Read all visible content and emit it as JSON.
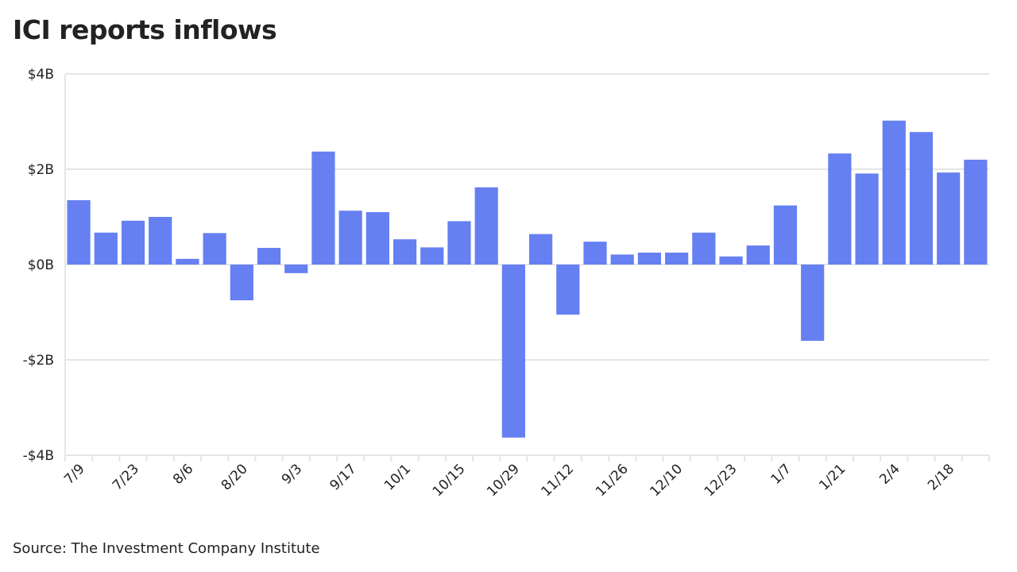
{
  "title": "ICI reports inflows",
  "source": "Source: The Investment Company Institute",
  "colors": {
    "bar": "#6680f2",
    "grid": "#e6e6e6",
    "text": "#222222"
  },
  "chart_data": {
    "type": "bar",
    "title": "ICI reports inflows",
    "xlabel": "",
    "ylabel": "",
    "unit": "$ billions",
    "ylim": [
      -4,
      4
    ],
    "y_ticks": [
      4,
      2,
      0,
      -2,
      -4
    ],
    "y_tick_labels": [
      "$4B",
      "$2B",
      "$0B",
      "-$2B",
      "-$4B"
    ],
    "x_tick_labels": [
      "7/9",
      "7/23",
      "8/6",
      "8/20",
      "9/3",
      "9/17",
      "10/1",
      "10/15",
      "10/29",
      "11/12",
      "11/26",
      "12/10",
      "12/23",
      "1/7",
      "1/21",
      "2/4",
      "2/18"
    ],
    "categories": [
      "7/9",
      "7/16",
      "7/23",
      "7/30",
      "8/6",
      "8/13",
      "8/20",
      "8/27",
      "9/3",
      "9/10",
      "9/17",
      "9/24",
      "10/1",
      "10/8",
      "10/15",
      "10/22",
      "10/29",
      "11/5",
      "11/12",
      "11/19",
      "11/26",
      "12/3",
      "12/10",
      "12/17",
      "12/23",
      "12/31",
      "1/7",
      "1/14",
      "1/21",
      "1/28",
      "2/4",
      "2/11",
      "2/18",
      "2/25"
    ],
    "values": [
      1.35,
      0.67,
      0.92,
      1.0,
      0.12,
      0.66,
      -0.75,
      0.35,
      -0.18,
      2.37,
      1.13,
      1.1,
      0.53,
      0.36,
      0.91,
      1.62,
      -3.63,
      0.64,
      -1.05,
      0.48,
      0.21,
      0.25,
      0.25,
      0.67,
      0.17,
      0.4,
      1.24,
      -1.6,
      2.33,
      1.91,
      3.02,
      2.78,
      1.93,
      2.2
    ]
  }
}
